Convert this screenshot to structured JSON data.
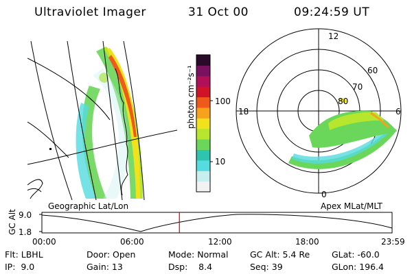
{
  "header": {
    "instrument": "Ultraviolet Imager",
    "date": "31 Oct 00",
    "time": "09:24:59 UT"
  },
  "left_panel": {
    "caption": "Geographic Lat/Lon"
  },
  "right_panel": {
    "caption": "Apex MLat/MLT",
    "mlt_labels": [
      "12",
      "18",
      "6",
      "0"
    ],
    "lat_labels": [
      "60",
      "70",
      "80"
    ]
  },
  "colorbar": {
    "unit_label": "photon cm⁻²s⁻¹",
    "ticks": [
      "100",
      "10"
    ],
    "colors": [
      "#f2f2f2",
      "#c7eff0",
      "#55dbe0",
      "#2fc4b0",
      "#6ad65a",
      "#b7e62e",
      "#f1e21c",
      "#f6a21a",
      "#ef5a1a",
      "#d1132a",
      "#b0105a",
      "#7a1060",
      "#2a0a2a"
    ]
  },
  "timeline": {
    "ylabel": "GC Alt",
    "y_ticks": [
      "9.0",
      "1.8"
    ],
    "x_ticks": [
      "00:00",
      "06:00",
      "12:00",
      "18:00",
      "23:59"
    ],
    "marker_time": "09:25",
    "marker_color": "#cc0000"
  },
  "info": {
    "row1": [
      "Flt: LBHL",
      "Door: Open",
      "Mode: Normal",
      "GC Alt: 5.4 Re",
      "GLat: -60.0"
    ],
    "row2": [
      "IP:  9.0",
      "Gain: 13",
      "Dsp:    8.4",
      "Seq: 39",
      "GLon: 196.4"
    ]
  }
}
